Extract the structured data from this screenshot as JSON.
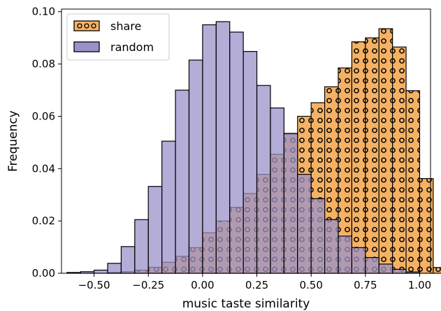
{
  "chart_data": {
    "type": "bar",
    "subtype": "overlaid-histogram",
    "xlabel": "music taste similarity",
    "ylabel": "Frequency",
    "xlim": [
      -0.65,
      1.05
    ],
    "ylim": [
      0,
      0.101
    ],
    "xticks": [
      -0.5,
      -0.25,
      0.0,
      0.25,
      0.5,
      0.75,
      1.0
    ],
    "xtick_labels": [
      "−0.50",
      "−0.25",
      "0.00",
      "0.25",
      "0.50",
      "0.75",
      "1.00"
    ],
    "yticks": [
      0,
      0.02,
      0.04,
      0.06,
      0.08,
      0.1
    ],
    "ytick_labels": [
      "0.00",
      "0.02",
      "0.04",
      "0.06",
      "0.08",
      "0.10"
    ],
    "grid": false,
    "legend_position": "top-left",
    "bin_width": 0.0625,
    "series": [
      {
        "name": "share",
        "color": "#f5b264",
        "hatch": "circles",
        "bins": [
          {
            "x0": -0.4375,
            "x1": -0.375,
            "y": 0.0003
          },
          {
            "x0": -0.375,
            "x1": -0.3125,
            "y": 0.0006
          },
          {
            "x0": -0.3125,
            "x1": -0.25,
            "y": 0.0012
          },
          {
            "x0": -0.25,
            "x1": -0.1875,
            "y": 0.0023
          },
          {
            "x0": -0.1875,
            "x1": -0.125,
            "y": 0.0042
          },
          {
            "x0": -0.125,
            "x1": -0.0625,
            "y": 0.0065
          },
          {
            "x0": -0.0625,
            "x1": 0.0,
            "y": 0.0098
          },
          {
            "x0": 0.0,
            "x1": 0.0625,
            "y": 0.0155
          },
          {
            "x0": 0.0625,
            "x1": 0.125,
            "y": 0.02
          },
          {
            "x0": 0.125,
            "x1": 0.1875,
            "y": 0.0252
          },
          {
            "x0": 0.1875,
            "x1": 0.25,
            "y": 0.0305
          },
          {
            "x0": 0.25,
            "x1": 0.3125,
            "y": 0.0378
          },
          {
            "x0": 0.3125,
            "x1": 0.375,
            "y": 0.0455
          },
          {
            "x0": 0.375,
            "x1": 0.4375,
            "y": 0.0532
          },
          {
            "x0": 0.4375,
            "x1": 0.5,
            "y": 0.06
          },
          {
            "x0": 0.5,
            "x1": 0.5625,
            "y": 0.0652
          },
          {
            "x0": 0.5625,
            "x1": 0.625,
            "y": 0.0713
          },
          {
            "x0": 0.625,
            "x1": 0.6875,
            "y": 0.0785
          },
          {
            "x0": 0.6875,
            "x1": 0.75,
            "y": 0.0885
          },
          {
            "x0": 0.75,
            "x1": 0.8125,
            "y": 0.09
          },
          {
            "x0": 0.8125,
            "x1": 0.875,
            "y": 0.0935
          },
          {
            "x0": 0.875,
            "x1": 0.9375,
            "y": 0.0865
          },
          {
            "x0": 0.9375,
            "x1": 1.0,
            "y": 0.0698
          },
          {
            "x0": 1.0,
            "x1": 1.0625,
            "y": 0.0362
          },
          {
            "x0": 1.0625,
            "x1": 1.125,
            "y": 0.0022
          }
        ]
      },
      {
        "name": "random",
        "color": "#9992c9",
        "hatch": "none",
        "bins": [
          {
            "x0": -0.625,
            "x1": -0.5625,
            "y": 0.0003
          },
          {
            "x0": -0.5625,
            "x1": -0.5,
            "y": 0.0006
          },
          {
            "x0": -0.5,
            "x1": -0.4375,
            "y": 0.0012
          },
          {
            "x0": -0.4375,
            "x1": -0.375,
            "y": 0.0038
          },
          {
            "x0": -0.375,
            "x1": -0.3125,
            "y": 0.0102
          },
          {
            "x0": -0.3125,
            "x1": -0.25,
            "y": 0.0205
          },
          {
            "x0": -0.25,
            "x1": -0.1875,
            "y": 0.0332
          },
          {
            "x0": -0.1875,
            "x1": -0.125,
            "y": 0.0505
          },
          {
            "x0": -0.125,
            "x1": -0.0625,
            "y": 0.07
          },
          {
            "x0": -0.0625,
            "x1": 0.0,
            "y": 0.0815
          },
          {
            "x0": 0.0,
            "x1": 0.0625,
            "y": 0.095
          },
          {
            "x0": 0.0625,
            "x1": 0.125,
            "y": 0.0962
          },
          {
            "x0": 0.125,
            "x1": 0.1875,
            "y": 0.0922
          },
          {
            "x0": 0.1875,
            "x1": 0.25,
            "y": 0.0848
          },
          {
            "x0": 0.25,
            "x1": 0.3125,
            "y": 0.0718
          },
          {
            "x0": 0.3125,
            "x1": 0.375,
            "y": 0.0632
          },
          {
            "x0": 0.375,
            "x1": 0.4375,
            "y": 0.0535
          },
          {
            "x0": 0.4375,
            "x1": 0.5,
            "y": 0.0378
          },
          {
            "x0": 0.5,
            "x1": 0.5625,
            "y": 0.0285
          },
          {
            "x0": 0.5625,
            "x1": 0.625,
            "y": 0.0205
          },
          {
            "x0": 0.625,
            "x1": 0.6875,
            "y": 0.0142
          },
          {
            "x0": 0.6875,
            "x1": 0.75,
            "y": 0.0098
          },
          {
            "x0": 0.75,
            "x1": 0.8125,
            "y": 0.006
          },
          {
            "x0": 0.8125,
            "x1": 0.875,
            "y": 0.0035
          },
          {
            "x0": 0.875,
            "x1": 0.9375,
            "y": 0.0015
          },
          {
            "x0": 0.9375,
            "x1": 1.0,
            "y": 0.0005
          }
        ]
      }
    ]
  }
}
